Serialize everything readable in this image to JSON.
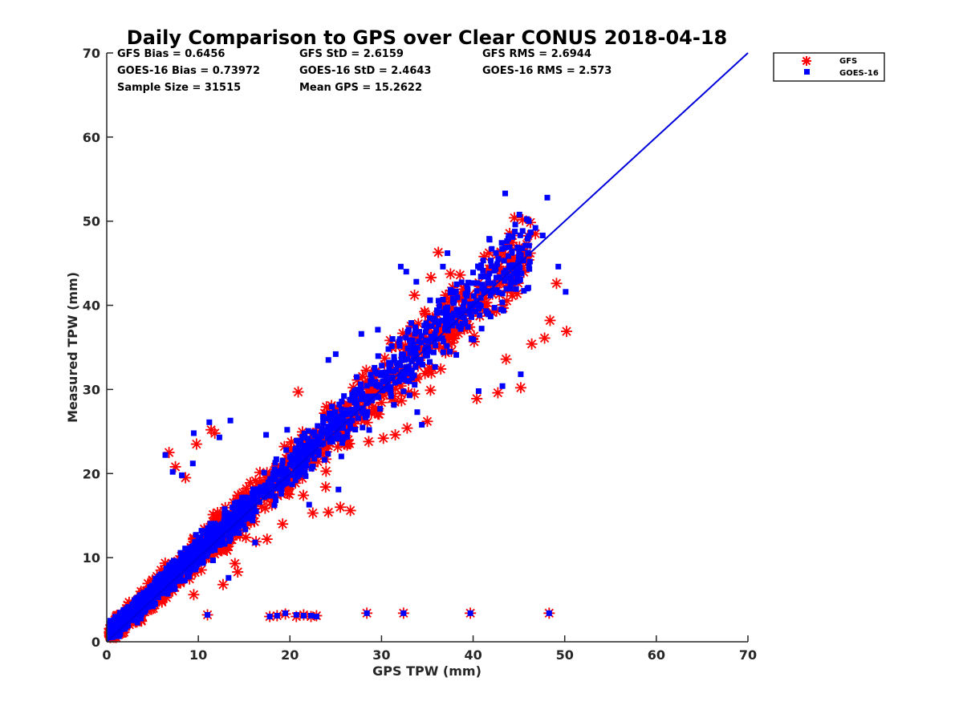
{
  "chart_data": {
    "type": "scatter",
    "title": "Daily Comparison to GPS over Clear CONUS 2018-04-18",
    "xlabel": "GPS TPW (mm)",
    "ylabel": "Measured TPW (mm)",
    "xlim": [
      0,
      70
    ],
    "ylim": [
      0,
      70
    ],
    "xticks": [
      0,
      10,
      20,
      30,
      40,
      50,
      60,
      70
    ],
    "yticks": [
      0,
      10,
      20,
      30,
      40,
      50,
      60,
      70
    ],
    "x_tick_labels": [
      "0",
      "10",
      "20",
      "30",
      "40",
      "50",
      "60",
      "70"
    ],
    "y_tick_labels": [
      "0",
      "10",
      "20",
      "30",
      "40",
      "50",
      "60",
      "70"
    ],
    "legend_position": "outside-top-right",
    "stats": {
      "gfs_bias": "GFS Bias = 0.6456",
      "gfs_std": "GFS StD = 2.6159",
      "gfs_rms": "GFS RMS = 2.6944",
      "goes_bias": "GOES-16 Bias = 0.73972",
      "goes_std": "GOES-16 StD = 2.4643",
      "goes_rms": "GOES-16 RMS = 2.573",
      "sample_size": "Sample Size = 31515",
      "mean_gps": "Mean GPS = 15.2622"
    },
    "one_to_one_line": {
      "x": [
        0,
        70
      ],
      "y": [
        0,
        70
      ],
      "color": "#0000dd"
    },
    "series": [
      {
        "name": "GFS",
        "marker": "asterisk",
        "color": "#ff0000",
        "outliers": [
          [
            6.8,
            22.5
          ],
          [
            7.5,
            20.8
          ],
          [
            8.6,
            19.5
          ],
          [
            9.8,
            23.5
          ],
          [
            11.4,
            25.2
          ],
          [
            11.8,
            24.8
          ],
          [
            14.3,
            8.3
          ],
          [
            11.0,
            3.2
          ],
          [
            17.8,
            3.0
          ],
          [
            18.6,
            3.1
          ],
          [
            19.5,
            3.3
          ],
          [
            20.7,
            3.0
          ],
          [
            21.5,
            3.2
          ],
          [
            22.3,
            3.0
          ],
          [
            22.9,
            3.1
          ],
          [
            28.4,
            3.4
          ],
          [
            32.4,
            3.4
          ],
          [
            39.7,
            3.4
          ],
          [
            48.3,
            3.4
          ],
          [
            20.9,
            29.7
          ],
          [
            27.4,
            29.0
          ],
          [
            36.2,
            46.3
          ],
          [
            33.6,
            41.2
          ],
          [
            35.4,
            43.3
          ],
          [
            44.3,
            48.3
          ],
          [
            45.2,
            30.2
          ],
          [
            46.4,
            35.4
          ],
          [
            47.8,
            36.1
          ],
          [
            48.4,
            38.2
          ],
          [
            49.1,
            42.6
          ],
          [
            50.2,
            36.9
          ],
          [
            40.4,
            28.9
          ],
          [
            42.7,
            29.6
          ],
          [
            43.6,
            33.6
          ],
          [
            24.2,
            15.4
          ],
          [
            25.5,
            16.0
          ],
          [
            23.9,
            18.4
          ],
          [
            26.6,
            15.6
          ],
          [
            31.5,
            24.6
          ],
          [
            30.2,
            24.2
          ],
          [
            19.2,
            14.0
          ],
          [
            17.5,
            12.2
          ],
          [
            16.3,
            11.9
          ],
          [
            15.2,
            12.4
          ],
          [
            38.4,
            41.0
          ],
          [
            41.2,
            45.8
          ],
          [
            46.8,
            48.5
          ],
          [
            35.0,
            26.2
          ],
          [
            32.8,
            25.4
          ],
          [
            28.6,
            23.8
          ],
          [
            22.5,
            15.3
          ],
          [
            14.0,
            9.3
          ],
          [
            12.7,
            6.8
          ],
          [
            9.5,
            5.6
          ]
        ]
      },
      {
        "name": "GOES-16",
        "marker": "square",
        "color": "#0000ff",
        "outliers": [
          [
            43.5,
            53.3
          ],
          [
            48.1,
            52.8
          ],
          [
            44.6,
            49.6
          ],
          [
            46.8,
            49.2
          ],
          [
            47.6,
            48.3
          ],
          [
            49.3,
            44.6
          ],
          [
            50.1,
            41.6
          ],
          [
            32.1,
            44.6
          ],
          [
            32.7,
            44.0
          ],
          [
            33.8,
            42.8
          ],
          [
            27.8,
            36.6
          ],
          [
            29.6,
            37.1
          ],
          [
            31.2,
            36.0
          ],
          [
            11.2,
            26.1
          ],
          [
            13.5,
            26.3
          ],
          [
            9.5,
            24.8
          ],
          [
            12.3,
            24.3
          ],
          [
            9.4,
            21.2
          ],
          [
            7.2,
            20.2
          ],
          [
            6.4,
            22.2
          ],
          [
            8.2,
            19.8
          ],
          [
            11.0,
            3.2
          ],
          [
            17.8,
            3.0
          ],
          [
            18.6,
            3.1
          ],
          [
            19.5,
            3.4
          ],
          [
            20.7,
            3.2
          ],
          [
            21.5,
            3.1
          ],
          [
            22.3,
            3.1
          ],
          [
            22.9,
            3.0
          ],
          [
            28.4,
            3.4
          ],
          [
            32.4,
            3.4
          ],
          [
            39.7,
            3.4
          ],
          [
            48.3,
            3.4
          ],
          [
            45.2,
            31.8
          ],
          [
            40.6,
            29.8
          ],
          [
            43.2,
            30.4
          ],
          [
            22.1,
            16.3
          ],
          [
            25.3,
            18.1
          ],
          [
            33.9,
            27.3
          ],
          [
            34.4,
            25.8
          ],
          [
            37.2,
            46.2
          ],
          [
            41.8,
            47.8
          ],
          [
            46.2,
            45.2
          ],
          [
            38.2,
            42.5
          ],
          [
            36.7,
            44.6
          ],
          [
            35.3,
            40.6
          ],
          [
            24.2,
            33.5
          ],
          [
            25.0,
            34.2
          ],
          [
            16.2,
            11.8
          ],
          [
            13.3,
            7.6
          ],
          [
            17.4,
            24.6
          ],
          [
            19.7,
            25.2
          ]
        ]
      }
    ]
  }
}
